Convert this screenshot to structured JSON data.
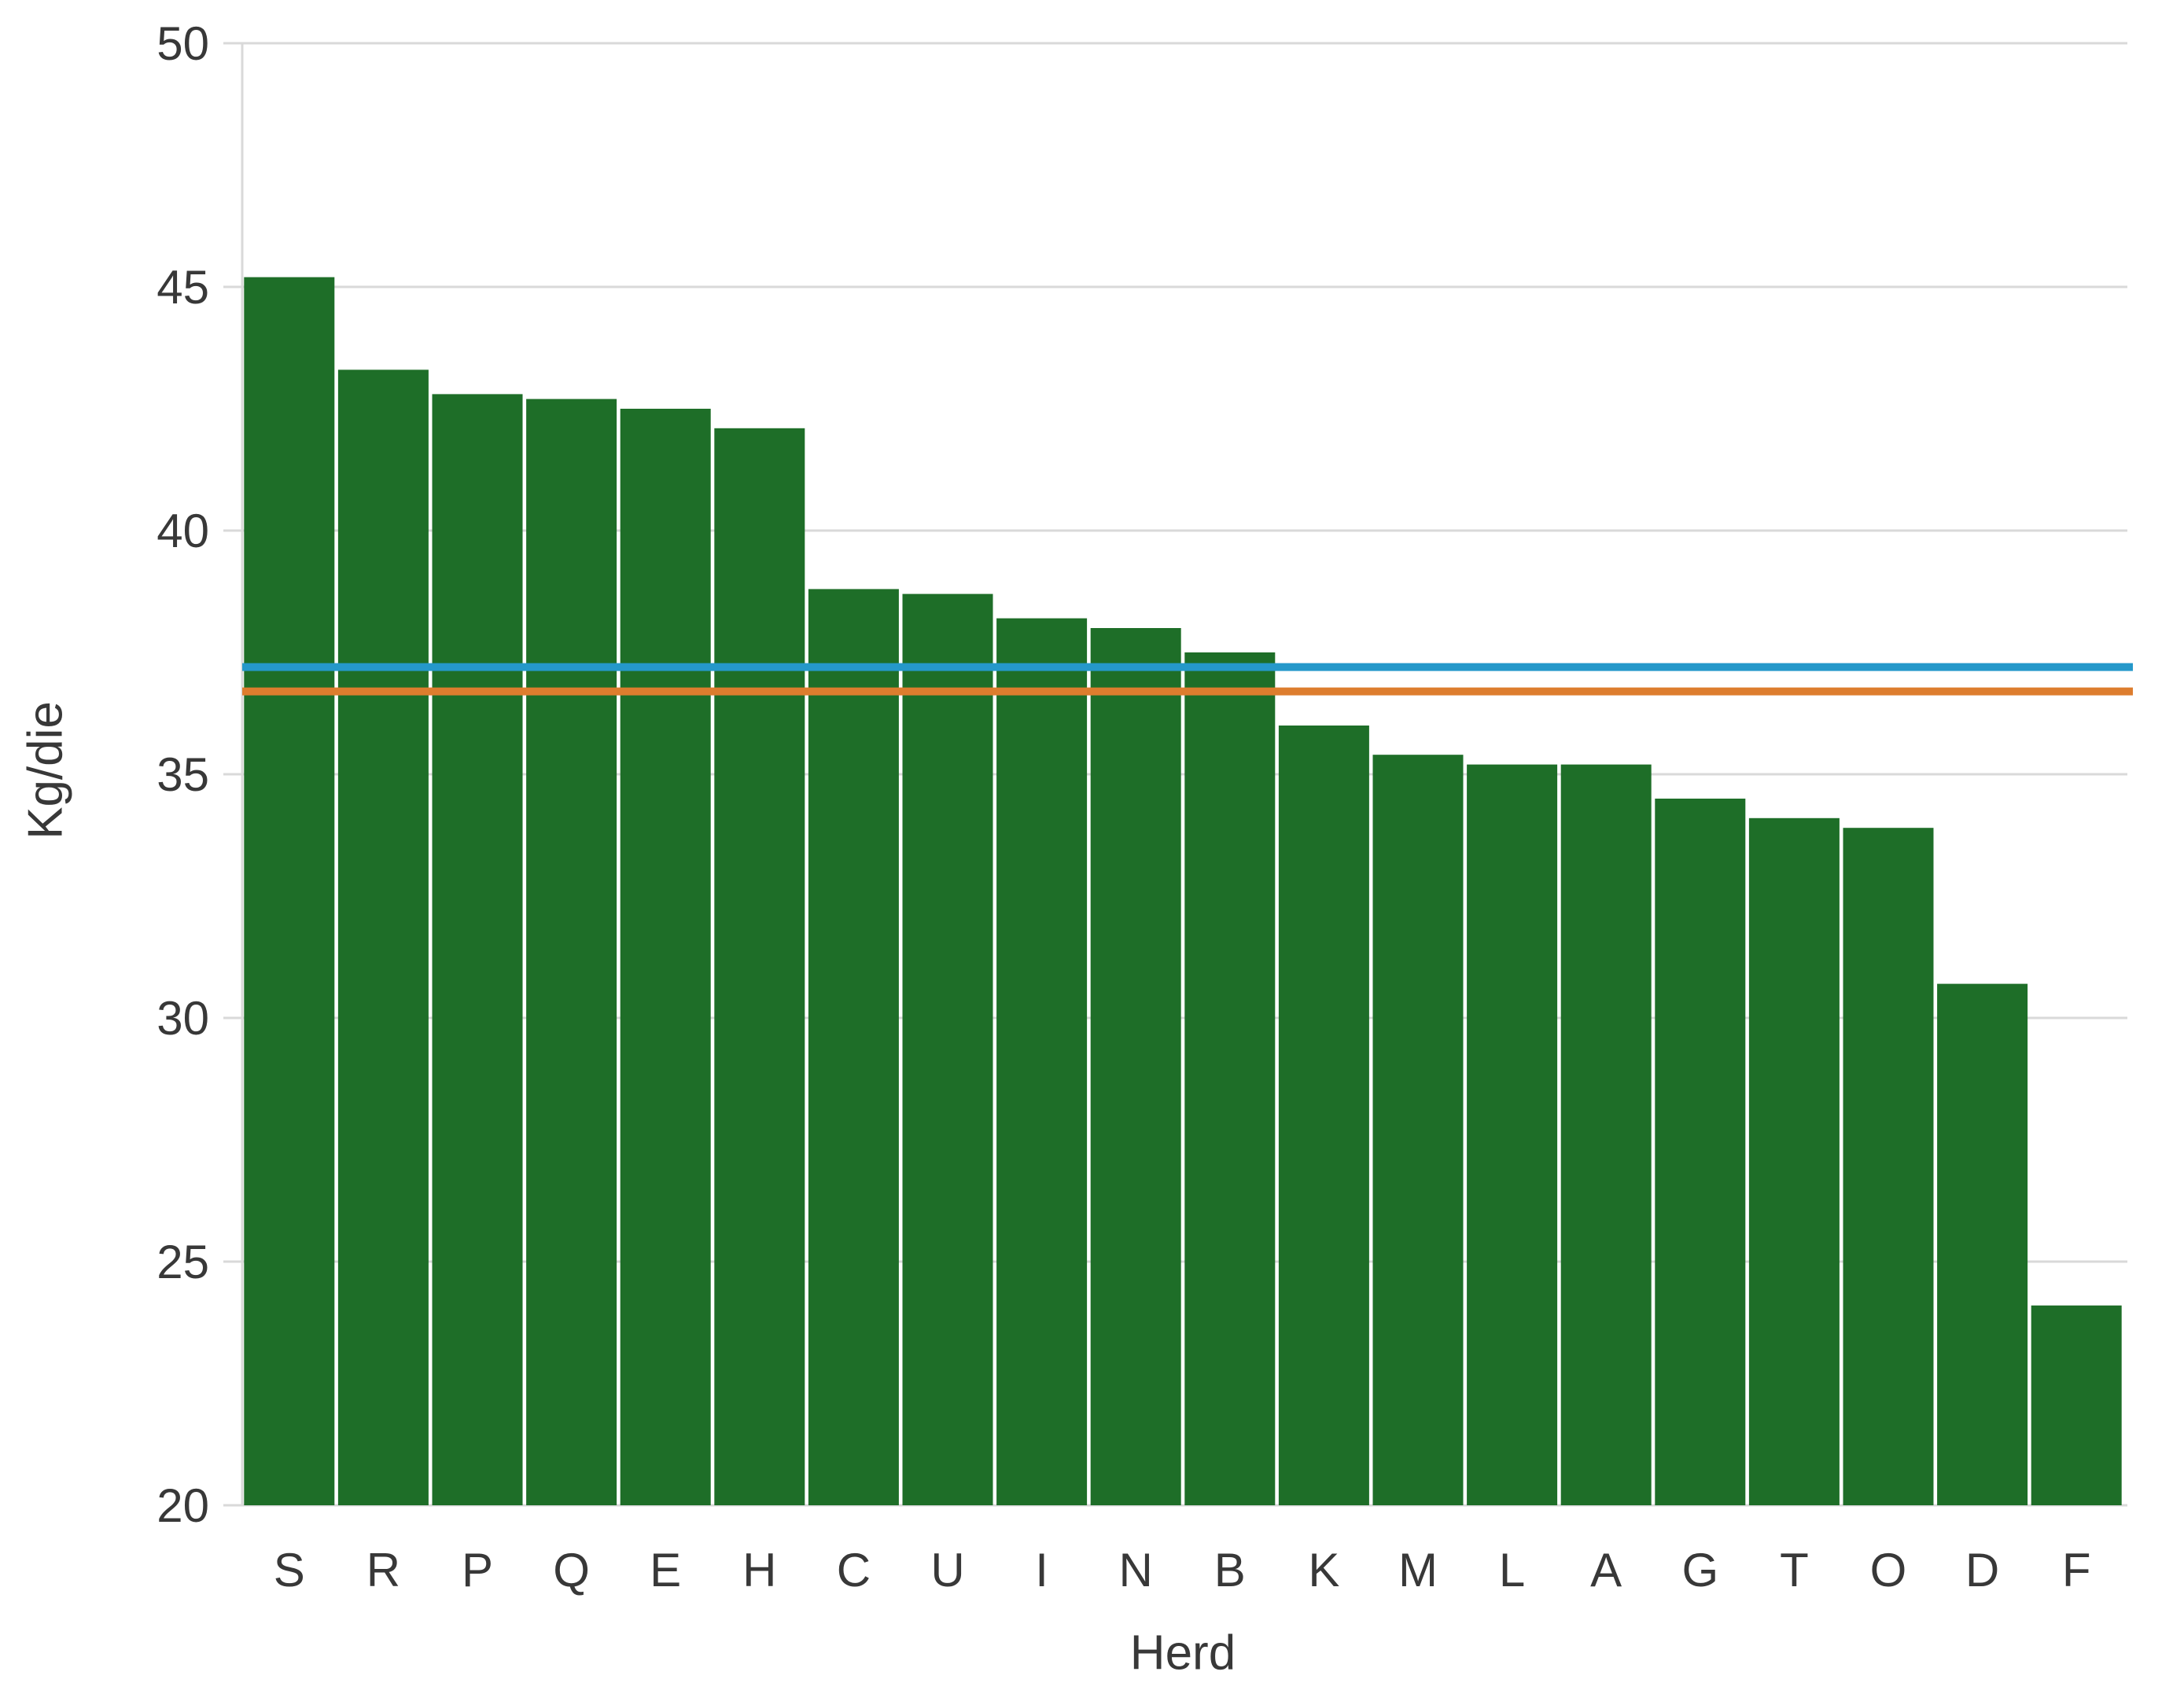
{
  "chart_data": {
    "type": "bar",
    "title": "",
    "xlabel": "Herd",
    "ylabel": "Kg/die",
    "categories": [
      "S",
      "R",
      "P",
      "Q",
      "E",
      "H",
      "C",
      "U",
      "I",
      "N",
      "B",
      "K",
      "M",
      "L",
      "A",
      "G",
      "T",
      "O",
      "D",
      "F"
    ],
    "values": [
      45.2,
      43.3,
      42.8,
      42.7,
      42.5,
      42.1,
      38.8,
      38.7,
      38.2,
      38.0,
      37.5,
      36.0,
      35.4,
      35.2,
      35.2,
      34.5,
      34.1,
      33.9,
      30.7,
      24.1
    ],
    "ylim": [
      20,
      50
    ],
    "yticks": [
      20,
      25,
      30,
      35,
      40,
      45,
      50
    ],
    "grid": "horizontal-gridlines-on",
    "legend": "none",
    "bar_color": "#1E6E28",
    "reference_lines": [
      {
        "name": "blue-reference-line",
        "value": 37.2,
        "color": "#2598CA"
      },
      {
        "name": "orange-reference-line",
        "value": 36.7,
        "color": "#DD7D2E"
      }
    ]
  },
  "colors": {
    "background": "#ffffff",
    "gridline": "#D9D9D9",
    "axis_line": "#D9D9D9",
    "text": "#383838"
  }
}
